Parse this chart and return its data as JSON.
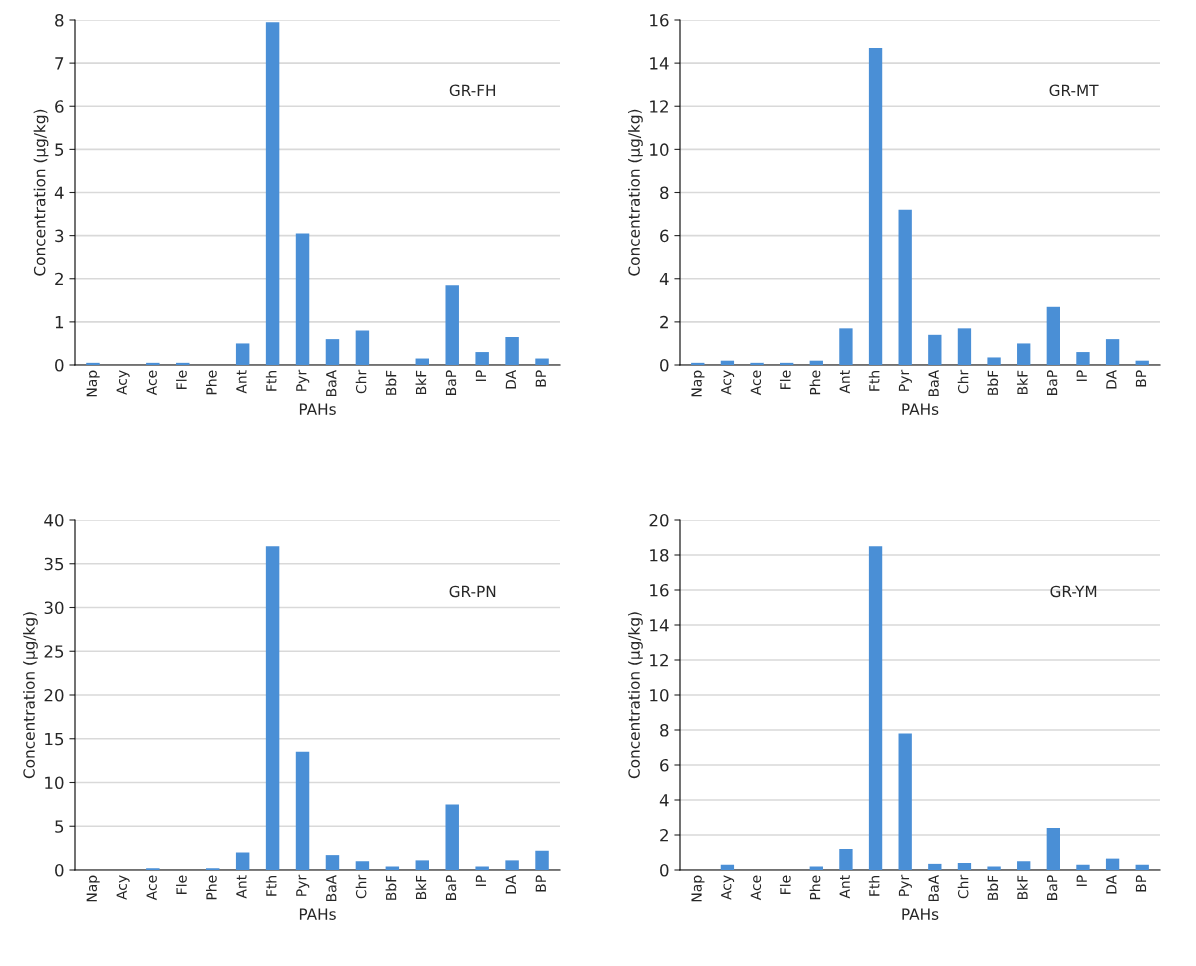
{
  "chart_data": [
    {
      "type": "bar",
      "categories": [
        "Nap",
        "Acy",
        "Ace",
        "Fle",
        "Phe",
        "Ant",
        "Fth",
        "Pyr",
        "BaA",
        "Chr",
        "BbF",
        "BkF",
        "BaP",
        "IP",
        "DA",
        "BP"
      ],
      "values": [
        0.05,
        0,
        0.05,
        0.05,
        0,
        0.5,
        7.95,
        3.05,
        0.6,
        0.8,
        0,
        0.15,
        1.85,
        0.3,
        0.65,
        0.15
      ],
      "color": "#4a8fd6",
      "xlabel": "PAHs",
      "ylabel": "Concentration (µg/kg)",
      "ylim": [
        0,
        8
      ],
      "yticks": [
        0,
        1,
        2,
        3,
        4,
        5,
        6,
        7,
        8
      ],
      "grid": "y",
      "annotations": [
        "GR-FH"
      ]
    },
    {
      "type": "bar",
      "categories": [
        "Nap",
        "Acy",
        "Ace",
        "Fle",
        "Phe",
        "Ant",
        "Fth",
        "Pyr",
        "BaA",
        "Chr",
        "BbF",
        "BkF",
        "BaP",
        "IP",
        "DA",
        "BP"
      ],
      "values": [
        0.1,
        0.2,
        0.1,
        0.1,
        0.2,
        1.7,
        14.7,
        7.2,
        1.4,
        1.7,
        0.35,
        1.0,
        2.7,
        0.6,
        1.2,
        0.2
      ],
      "color": "#4a8fd6",
      "xlabel": "PAHs",
      "ylabel": "Concentration (µg/kg)",
      "ylim": [
        0,
        16
      ],
      "yticks": [
        0,
        2,
        4,
        6,
        8,
        10,
        12,
        14,
        16
      ],
      "grid": "y",
      "annotations": [
        "GR-MT"
      ]
    },
    {
      "type": "bar",
      "categories": [
        "Nap",
        "Acy",
        "Ace",
        "Fle",
        "Phe",
        "Ant",
        "Fth",
        "Pyr",
        "BaA",
        "Chr",
        "BbF",
        "BkF",
        "BaP",
        "IP",
        "DA",
        "BP"
      ],
      "values": [
        0,
        0,
        0.2,
        0,
        0.2,
        2.0,
        37,
        13.5,
        1.7,
        1.0,
        0.4,
        1.1,
        7.5,
        0.4,
        1.1,
        2.2
      ],
      "color": "#4a8fd6",
      "xlabel": "PAHs",
      "ylabel": "Concentration (µg/kg)",
      "ylim": [
        0,
        40
      ],
      "yticks": [
        0,
        5,
        10,
        15,
        20,
        25,
        30,
        35,
        40
      ],
      "grid": "y",
      "annotations": [
        "GR-PN"
      ]
    },
    {
      "type": "bar",
      "categories": [
        "Nap",
        "Acy",
        "Ace",
        "Fle",
        "Phe",
        "Ant",
        "Fth",
        "Pyr",
        "BaA",
        "Chr",
        "BbF",
        "BkF",
        "BaP",
        "IP",
        "DA",
        "BP"
      ],
      "values": [
        0,
        0.3,
        0,
        0,
        0.2,
        1.2,
        18.5,
        7.8,
        0.35,
        0.4,
        0.2,
        0.5,
        2.4,
        0.3,
        0.65,
        0.3
      ],
      "color": "#4a8fd6",
      "xlabel": "PAHs",
      "ylabel": "Concentration (µg/kg)",
      "ylim": [
        0,
        20
      ],
      "yticks": [
        0,
        2,
        4,
        6,
        8,
        10,
        12,
        14,
        16,
        18,
        20
      ],
      "grid": "y",
      "annotations": [
        "GR-YM"
      ]
    }
  ]
}
